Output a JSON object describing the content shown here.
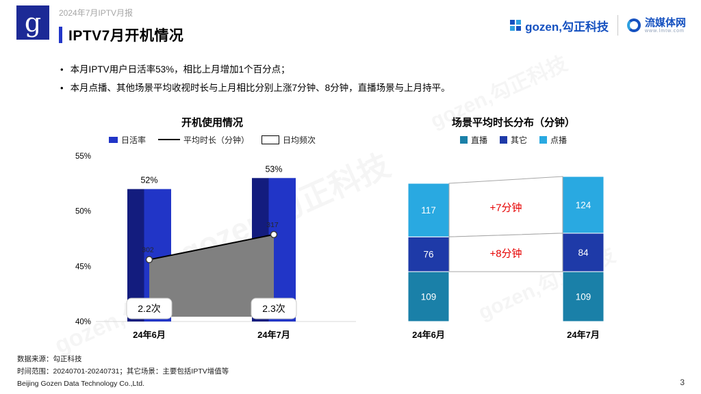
{
  "header": {
    "report_label": "2024年7月IPTV月报",
    "title": "IPTV7月开机情况",
    "logo_letter": "g",
    "brand": {
      "gozen": "gozen,勾正科技",
      "lmtw": "流媒体网",
      "lmtw_sub": "www.lmtw.com"
    }
  },
  "watermark": {
    "text": "gozen,勾正科技"
  },
  "bullets": [
    "本月IPTV用户日活率53%，相比上月增加1个百分点；",
    "本月点播、其他场景平均收视时长与上月相比分别上涨7分钟、8分钟，直播场景与上月持平。"
  ],
  "colors": {
    "accent": "#2236c8",
    "brand_blue": "#1551c0",
    "annotation_red": "#e60000",
    "area_gray": "#808080"
  },
  "chart_data": [
    {
      "type": "bar",
      "title": "开机使用情况",
      "categories": [
        "24年6月",
        "24年7月"
      ],
      "series": [
        {
          "key": "dau",
          "name": "日活率",
          "kind": "bar",
          "values": [
            52,
            53
          ],
          "unit": "%",
          "color": "#2135c7",
          "color_dark": "#131c7e"
        },
        {
          "key": "duration",
          "name": "平均时长（分钟）",
          "kind": "line",
          "values": [
            302,
            317
          ],
          "color": "#000000",
          "area_color": "#808080"
        },
        {
          "key": "frequency",
          "name": "日均频次",
          "kind": "box",
          "values": [
            "2.2次",
            "2.3次"
          ]
        }
      ],
      "ylim": [
        40,
        55
      ],
      "yticks": [
        55,
        50,
        45,
        40
      ],
      "ytick_suffix": "%",
      "y2lim": [
        265,
        364
      ],
      "legend_position": "top",
      "grid": false
    },
    {
      "type": "stacked-bar",
      "title": "场景平均时长分布（分钟）",
      "categories": [
        "24年6月",
        "24年7月"
      ],
      "series": [
        {
          "key": "live",
          "name": "直播",
          "values": [
            109,
            109
          ],
          "color": "#1a80a8"
        },
        {
          "key": "other",
          "name": "其它",
          "values": [
            76,
            84
          ],
          "color": "#1e3aa8"
        },
        {
          "key": "vod",
          "name": "点播",
          "values": [
            117,
            124
          ],
          "color": "#29a9e1"
        }
      ],
      "annotations": [
        {
          "text": "+7分钟",
          "segment": "vod",
          "color": "#e60000"
        },
        {
          "text": "+8分钟",
          "segment": "other",
          "color": "#e60000"
        }
      ],
      "legend_position": "top",
      "grid": false
    }
  ],
  "footer": {
    "source": "数据来源：勾正科技",
    "range": "时间范围：20240701-20240731；其它场景：主要包括IPTV增值等",
    "company": "Beijing Gozen Data Technology Co.,Ltd.",
    "page": "3"
  }
}
